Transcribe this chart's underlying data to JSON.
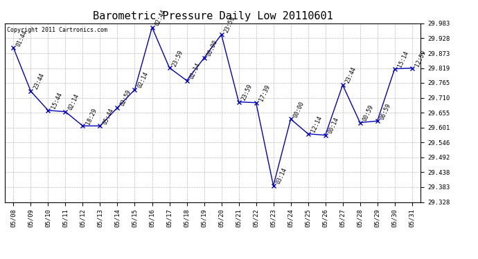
{
  "title": "Barometric Pressure Daily Low 20110601",
  "copyright": "Copyright 2011 Cartronics.com",
  "x_labels": [
    "05/08",
    "05/09",
    "05/10",
    "05/11",
    "05/12",
    "05/13",
    "05/14",
    "05/15",
    "05/16",
    "05/17",
    "05/18",
    "05/19",
    "05/20",
    "05/21",
    "05/22",
    "05/23",
    "05/24",
    "05/25",
    "05/26",
    "05/27",
    "05/28",
    "05/29",
    "05/30",
    "05/31"
  ],
  "y_values": [
    29.893,
    29.734,
    29.664,
    29.659,
    29.607,
    29.607,
    29.674,
    29.74,
    29.968,
    29.82,
    29.773,
    29.856,
    29.942,
    29.695,
    29.692,
    29.388,
    29.632,
    29.578,
    29.573,
    29.757,
    29.619,
    29.625,
    29.816,
    29.819
  ],
  "point_labels": [
    "01:44",
    "23:44",
    "15:44",
    "02:14",
    "18:29",
    "05:44",
    "02:59",
    "02:14",
    "02:44",
    "23:59",
    "02:14",
    "00:00",
    "23:59",
    "23:59",
    "17:39",
    "03:14",
    "00:00",
    "12:14",
    "00:14",
    "23:44",
    "00:59",
    "06:59",
    "15:14",
    "12:59"
  ],
  "line_color": "#0000bb",
  "marker_color": "#0000bb",
  "bg_color": "#ffffff",
  "grid_color": "#bbbbbb",
  "y_min": 29.328,
  "y_max": 29.983,
  "y_ticks": [
    29.328,
    29.383,
    29.438,
    29.492,
    29.546,
    29.601,
    29.655,
    29.71,
    29.765,
    29.819,
    29.873,
    29.928,
    29.983
  ],
  "title_fontsize": 11,
  "label_fontsize": 6.0,
  "tick_fontsize": 6.5,
  "copyright_fontsize": 6.0
}
